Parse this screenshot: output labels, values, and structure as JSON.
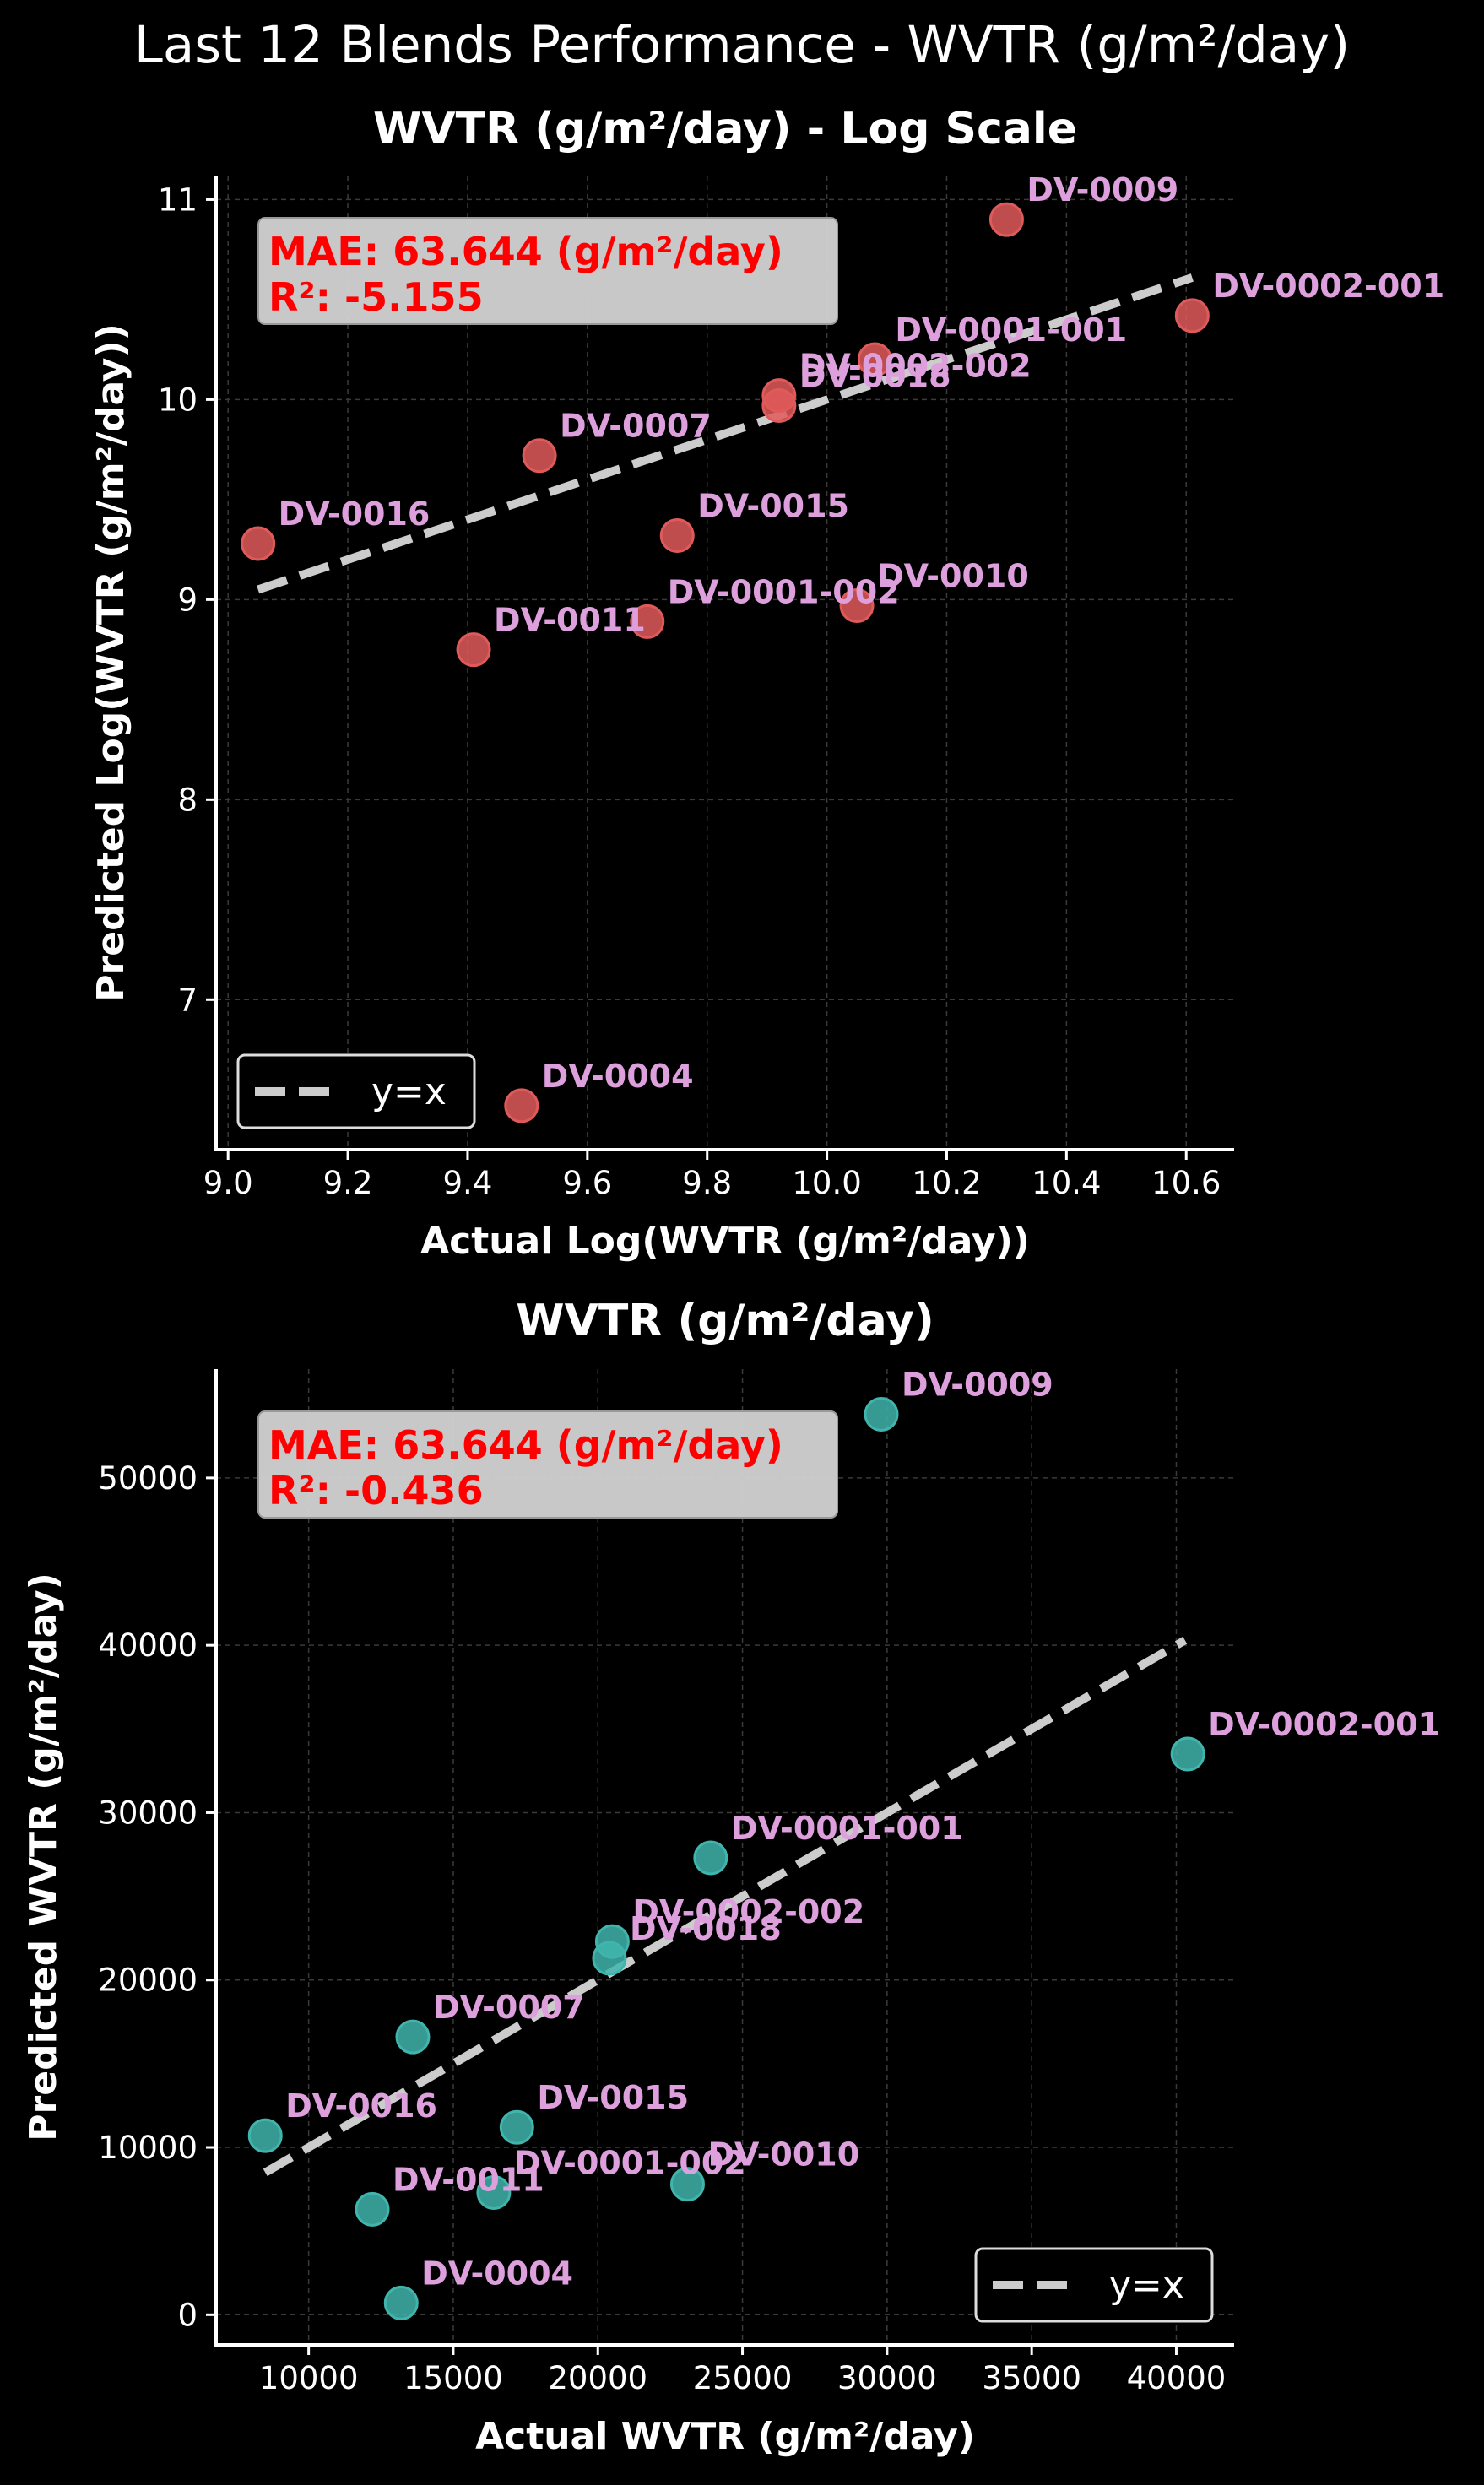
{
  "figure": {
    "title": "Last 12 Blends Performance - WVTR (g/m²/day)"
  },
  "chart_data": [
    {
      "type": "scatter",
      "title": "WVTR (g/m²/day) - Log Scale",
      "xlabel": "Actual Log(WVTR (g/m²/day))",
      "ylabel": "Predicted Log(WVTR (g/m²/day))",
      "xlim": [
        8.98,
        10.68
      ],
      "ylim": [
        6.25,
        11.12
      ],
      "xticks": [
        9.0,
        9.2,
        9.4,
        9.6,
        9.8,
        10.0,
        10.2,
        10.4,
        10.6
      ],
      "xtick_labels": [
        "9.0",
        "9.2",
        "9.4",
        "9.6",
        "9.8",
        "10.0",
        "10.2",
        "10.4",
        "10.6"
      ],
      "yticks": [
        7,
        8,
        9,
        10,
        11
      ],
      "ytick_labels": [
        "7",
        "8",
        "9",
        "10",
        "11"
      ],
      "grid": true,
      "legend": {
        "position": "lower-left",
        "entries": [
          "y=x"
        ]
      },
      "metrics_box": {
        "mae": "MAE: 63.644 (g/m²/day)",
        "r2": "R²: -5.155"
      },
      "identity_line": {
        "label": "y=x",
        "from": [
          9.05,
          9.05
        ],
        "to": [
          10.61,
          10.61
        ]
      },
      "point_color": "#e05a5a",
      "label_color": "#dda0dd",
      "points": [
        {
          "label": "DV-0009",
          "x": 10.3,
          "y": 10.9
        },
        {
          "label": "DV-0002-001",
          "x": 10.61,
          "y": 10.42
        },
        {
          "label": "DV-0001-001",
          "x": 10.08,
          "y": 10.2
        },
        {
          "label": "DV-0002-002",
          "x": 9.92,
          "y": 10.02
        },
        {
          "label": "DV-0018",
          "x": 9.92,
          "y": 9.97
        },
        {
          "label": "DV-0007",
          "x": 9.52,
          "y": 9.72
        },
        {
          "label": "DV-0016",
          "x": 9.05,
          "y": 9.28
        },
        {
          "label": "DV-0015",
          "x": 9.75,
          "y": 9.32
        },
        {
          "label": "DV-0011",
          "x": 9.41,
          "y": 8.75
        },
        {
          "label": "DV-0001-002",
          "x": 9.7,
          "y": 8.89
        },
        {
          "label": "DV-0010",
          "x": 10.05,
          "y": 8.97
        },
        {
          "label": "DV-0004",
          "x": 9.49,
          "y": 6.47
        }
      ]
    },
    {
      "type": "scatter",
      "title": "WVTR (g/m²/day)",
      "xlabel": "Actual WVTR (g/m²/day)",
      "ylabel": "Predicted WVTR (g/m²/day)",
      "xlim": [
        6800,
        42000
      ],
      "ylim": [
        -1800,
        56500
      ],
      "xticks": [
        10000,
        15000,
        20000,
        25000,
        30000,
        35000,
        40000
      ],
      "xtick_labels": [
        "10000",
        "15000",
        "20000",
        "25000",
        "30000",
        "35000",
        "40000"
      ],
      "yticks": [
        0,
        10000,
        20000,
        30000,
        40000,
        50000
      ],
      "ytick_labels": [
        "0",
        "10000",
        "20000",
        "30000",
        "40000",
        "50000"
      ],
      "grid": true,
      "legend": {
        "position": "lower-right",
        "entries": [
          "y=x"
        ]
      },
      "metrics_box": {
        "mae": "MAE: 63.644 (g/m²/day)",
        "r2": "R²: -0.436"
      },
      "identity_line": {
        "label": "y=x",
        "from": [
          8500,
          8500
        ],
        "to": [
          40300,
          40300
        ]
      },
      "point_color": "#3fb5ad",
      "label_color": "#dda0dd",
      "points": [
        {
          "label": "DV-0009",
          "x": 29800,
          "y": 53800
        },
        {
          "label": "DV-0002-001",
          "x": 40400,
          "y": 33500
        },
        {
          "label": "DV-0001-001",
          "x": 23900,
          "y": 27300
        },
        {
          "label": "DV-0002-002",
          "x": 20500,
          "y": 22300
        },
        {
          "label": "DV-0018",
          "x": 20400,
          "y": 21300
        },
        {
          "label": "DV-0007",
          "x": 13600,
          "y": 16600
        },
        {
          "label": "DV-0016",
          "x": 8500,
          "y": 10700
        },
        {
          "label": "DV-0015",
          "x": 17200,
          "y": 11200
        },
        {
          "label": "DV-0011",
          "x": 12200,
          "y": 6300
        },
        {
          "label": "DV-0001-002",
          "x": 16400,
          "y": 7300
        },
        {
          "label": "DV-0010",
          "x": 23100,
          "y": 7800
        },
        {
          "label": "DV-0004",
          "x": 13200,
          "y": 700
        }
      ]
    }
  ]
}
